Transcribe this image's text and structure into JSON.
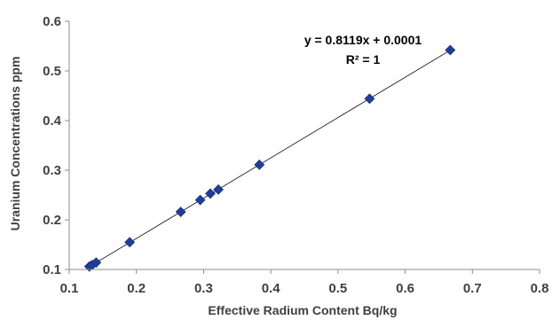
{
  "chart_data": {
    "type": "scatter",
    "title": "",
    "xlabel": "Effective Radium Content Bq/kg",
    "ylabel": "Uranium Concentrations ppm",
    "xlim": [
      0.1,
      0.8
    ],
    "ylim": [
      0.1,
      0.6
    ],
    "xticks": [
      "0.1",
      "0.2",
      "0.3",
      "0.4",
      "0.5",
      "0.6",
      "0.7",
      "0.8"
    ],
    "yticks": [
      "0.1",
      "0.2",
      "0.3",
      "0.4",
      "0.5",
      "0.6"
    ],
    "grid": false,
    "legend": "none",
    "series": [
      {
        "marker": "diamond",
        "color": "#1f3d99",
        "points": [
          {
            "x": 0.13,
            "y": 0.106
          },
          {
            "x": 0.134,
            "y": 0.109
          },
          {
            "x": 0.14,
            "y": 0.114
          },
          {
            "x": 0.19,
            "y": 0.155
          },
          {
            "x": 0.266,
            "y": 0.216
          },
          {
            "x": 0.295,
            "y": 0.24
          },
          {
            "x": 0.31,
            "y": 0.253
          },
          {
            "x": 0.322,
            "y": 0.261
          },
          {
            "x": 0.383,
            "y": 0.311
          },
          {
            "x": 0.547,
            "y": 0.444
          },
          {
            "x": 0.667,
            "y": 0.542
          }
        ]
      }
    ],
    "trendline": {
      "type": "linear",
      "slope": 0.8119,
      "intercept": 0.0001,
      "x_range": [
        0.13,
        0.667
      ],
      "color": "#000000"
    },
    "annotations": {
      "equation": "y = 0.8119x + 0.0001",
      "r_squared": "R² = 1"
    }
  }
}
